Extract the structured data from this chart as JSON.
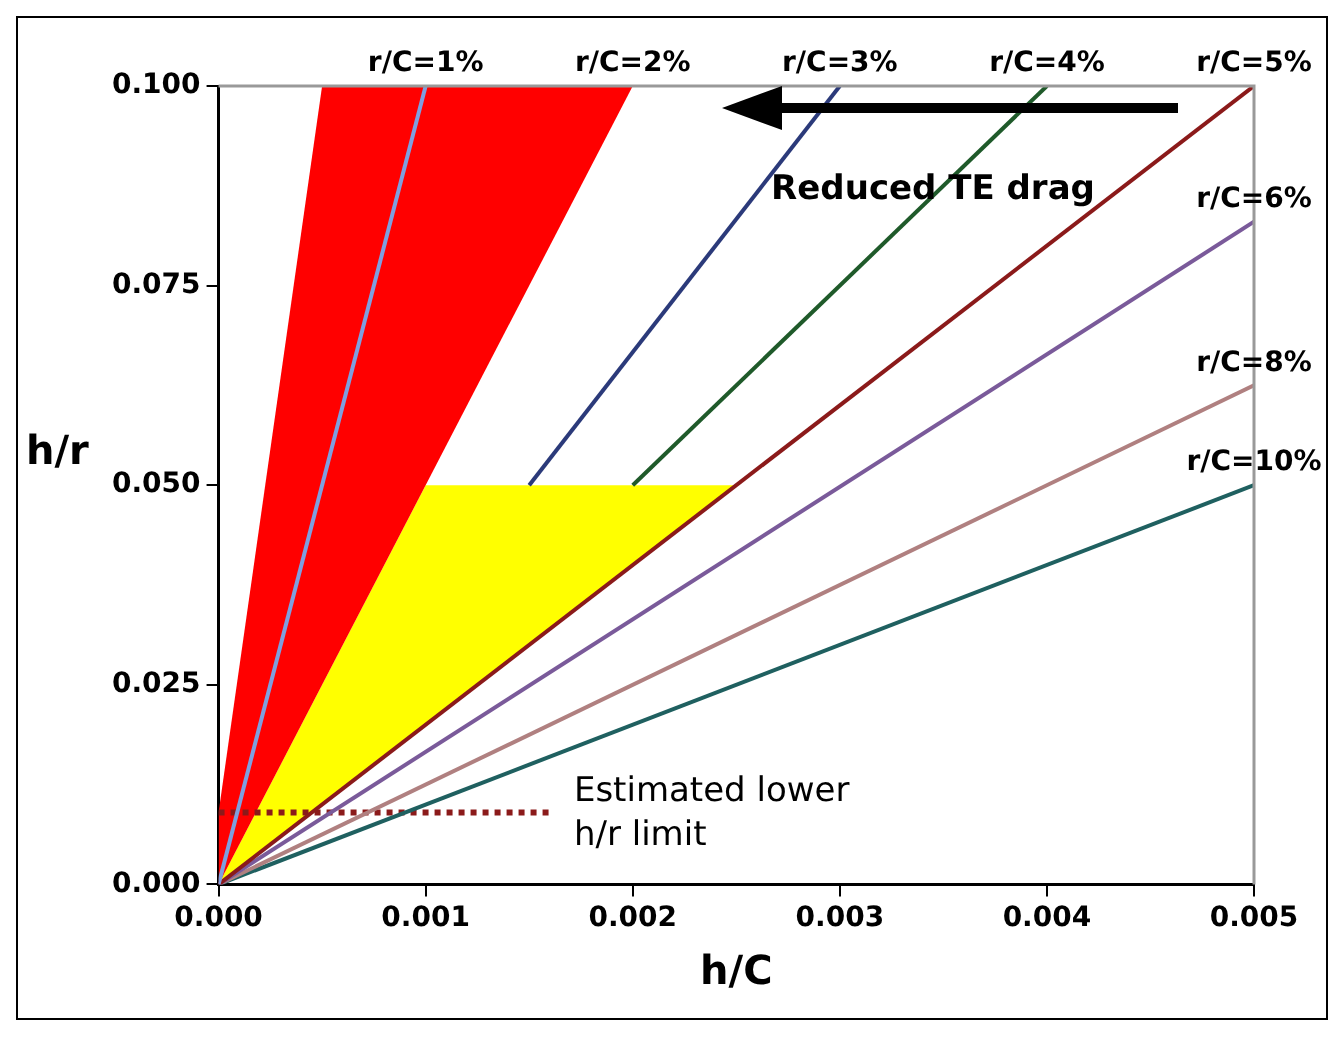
{
  "chart_data": {
    "type": "line",
    "xlabel": "h/C",
    "ylabel": "h/r",
    "xlim": [
      0,
      0.005
    ],
    "ylim": [
      0,
      0.1
    ],
    "xticks": [
      {
        "value": 0,
        "label": "0.000"
      },
      {
        "value": 0.001,
        "label": "0.001"
      },
      {
        "value": 0.002,
        "label": "0.002"
      },
      {
        "value": 0.003,
        "label": "0.003"
      },
      {
        "value": 0.004,
        "label": "0.004"
      },
      {
        "value": 0.005,
        "label": "0.005"
      }
    ],
    "yticks": [
      {
        "value": 0,
        "label": "0.000"
      },
      {
        "value": 0.025,
        "label": "0.025"
      },
      {
        "value": 0.05,
        "label": "0.050"
      },
      {
        "value": 0.075,
        "label": "0.075"
      },
      {
        "value": 0.1,
        "label": "0.100"
      }
    ],
    "grid": false,
    "legend": false,
    "marker": "none",
    "annotations": [
      "Reduced TE drag",
      {
        "text": "r/C=2%",
        "x": 0.002,
        "y": 0.1
      }
    ],
    "series": [
      {
        "type": "area",
        "color": "#ff0000",
        "x": [
          0,
          0,
          0.0005,
          0.002
        ],
        "values": [
          0,
          0.009,
          0.1,
          0.1
        ]
      },
      {
        "type": "area",
        "color": "#ffff00",
        "x": [
          0,
          0.001,
          0.0025
        ],
        "values": [
          0,
          0.05,
          0.05
        ]
      },
      {
        "type": "line",
        "name": "r/C=1%",
        "color": "#7f9fdf",
        "x": [
          0,
          0.001
        ],
        "values": [
          0,
          0.1
        ]
      },
      {
        "type": "line",
        "name": "r/C=3%",
        "color": "#2b3a7a",
        "x": [
          0.0015,
          0.003
        ],
        "values": [
          0.05,
          0.1
        ]
      },
      {
        "type": "line",
        "name": "r/C=4%",
        "color": "#1f5a2a",
        "x": [
          0.002,
          0.004
        ],
        "values": [
          0.05,
          0.1
        ]
      },
      {
        "type": "line",
        "name": "r/C=5%",
        "color": "#8b1a1a",
        "x": [
          0,
          0.005
        ],
        "values": [
          0,
          0.1
        ]
      },
      {
        "type": "line",
        "name": "r/C=6%",
        "color": "#7a5a9a",
        "x": [
          0,
          0.005
        ],
        "values": [
          0,
          0.083
        ]
      },
      {
        "type": "line",
        "name": "r/C=8%",
        "color": "#b08080",
        "x": [
          0,
          0.005
        ],
        "values": [
          0,
          0.0625
        ]
      },
      {
        "type": "line",
        "name": "r/C=10%",
        "color": "#1f6060",
        "x": [
          0,
          0.005
        ],
        "values": [
          0,
          0.05
        ]
      },
      {
        "type": "line",
        "name": "Estimated lower h/r limit",
        "color": "#8b1a1a",
        "line_style": "dotted",
        "x": [
          0,
          0.0016
        ],
        "values": [
          0.009,
          0.009
        ]
      }
    ]
  }
}
